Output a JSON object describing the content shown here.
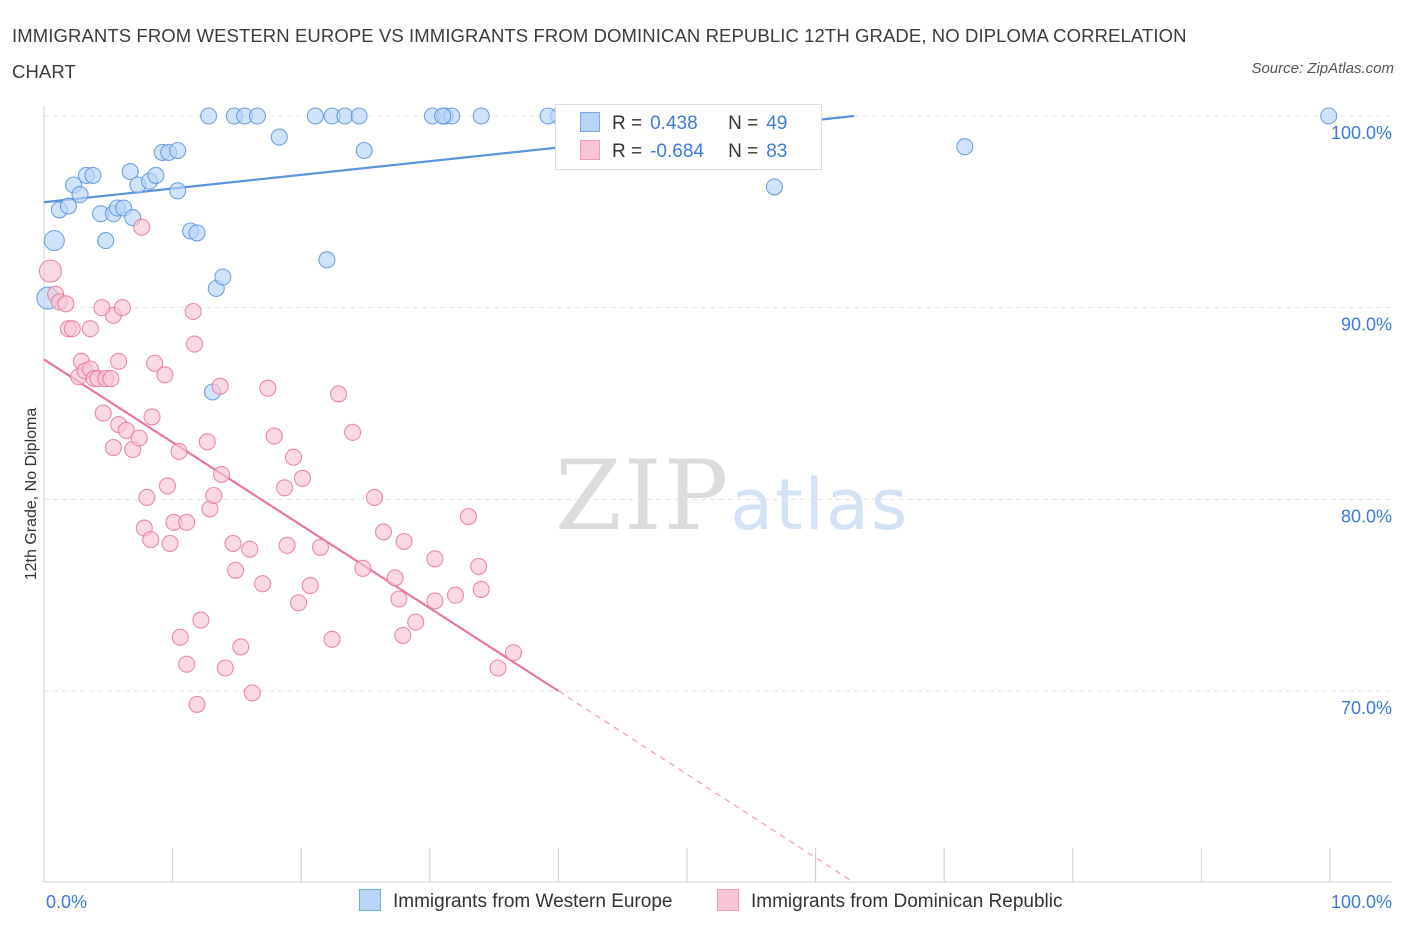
{
  "title": "IMMIGRANTS FROM WESTERN EUROPE VS IMMIGRANTS FROM DOMINICAN REPUBLIC 12TH GRADE, NO DIPLOMA CORRELATION CHART",
  "source": "Source: ZipAtlas.com",
  "watermark": {
    "zip": "ZIP",
    "atlas": "atlas"
  },
  "legend": {
    "r_label": "R =",
    "n_label": "N =",
    "rows": [
      {
        "r": "0.438",
        "n": "49",
        "fill": "#b8d4f7",
        "stroke": "#7aa9e8"
      },
      {
        "r": "-0.684",
        "n": "83",
        "fill": "#f9c5d6",
        "stroke": "#ee9ab6"
      }
    ]
  },
  "bottom_legend": [
    {
      "label": "Immigrants from Western Europe"
    },
    {
      "label": "Immigrants from Dominican Republic"
    }
  ],
  "chart_data": {
    "type": "scatter",
    "title": "IMMIGRANTS FROM WESTERN EUROPE VS IMMIGRANTS FROM DOMINICAN REPUBLIC 12TH GRADE, NO DIPLOMA CORRELATION CHART",
    "xlabel": "",
    "ylabel": "12th Grade, No Diploma",
    "xlim": [
      0,
      100
    ],
    "ylim": [
      60,
      100
    ],
    "x_tick_labels": [
      "0.0%",
      "100.0%"
    ],
    "y_ticks": [
      70,
      80,
      90,
      100
    ],
    "y_tick_labels": [
      "70.0%",
      "80.0%",
      "90.0%",
      "100.0%"
    ],
    "grid": true,
    "legend_placement": "top-center",
    "series": [
      {
        "name": "Immigrants from Western Europe",
        "color": "#5b93dd",
        "fill": "#b8d4f7",
        "r": 0.438,
        "n": 49,
        "trend": {
          "x": [
            0,
            63
          ],
          "y": [
            95.5,
            100
          ]
        },
        "points": [
          [
            0.3,
            90.5
          ],
          [
            0.8,
            93.5
          ],
          [
            1.2,
            95.1
          ],
          [
            1.9,
            95.3
          ],
          [
            2.3,
            96.4
          ],
          [
            2.8,
            95.9
          ],
          [
            3.3,
            96.9
          ],
          [
            3.8,
            96.9
          ],
          [
            4.4,
            94.9
          ],
          [
            5.4,
            94.9
          ],
          [
            5.7,
            95.2
          ],
          [
            6.2,
            95.2
          ],
          [
            4.8,
            93.5
          ],
          [
            6.9,
            94.7
          ],
          [
            6.7,
            97.1
          ],
          [
            7.3,
            96.4
          ],
          [
            8.2,
            96.6
          ],
          [
            8.7,
            96.9
          ],
          [
            9.2,
            98.1
          ],
          [
            9.7,
            98.1
          ],
          [
            10.4,
            98.2
          ],
          [
            10.4,
            96.1
          ],
          [
            11.4,
            94.0
          ],
          [
            11.9,
            93.9
          ],
          [
            13.4,
            91.0
          ],
          [
            13.9,
            91.6
          ],
          [
            13.1,
            85.6
          ],
          [
            12.8,
            100
          ],
          [
            14.8,
            100
          ],
          [
            15.6,
            100
          ],
          [
            16.6,
            100
          ],
          [
            18.3,
            98.9
          ],
          [
            21.1,
            100
          ],
          [
            22.4,
            100
          ],
          [
            23.4,
            100
          ],
          [
            24.5,
            100
          ],
          [
            24.9,
            98.2
          ],
          [
            22.0,
            92.5
          ],
          [
            30.2,
            100
          ],
          [
            31.2,
            100
          ],
          [
            31.7,
            100
          ],
          [
            34.0,
            100
          ],
          [
            40.0,
            100
          ],
          [
            47.3,
            100
          ],
          [
            56.8,
            96.3
          ],
          [
            71.6,
            98.4
          ],
          [
            99.9,
            100
          ],
          [
            31.0,
            100
          ],
          [
            39.2,
            100
          ]
        ]
      },
      {
        "name": "Immigrants from Dominican Republic",
        "color": "#e8779c",
        "fill": "#f9c5d6",
        "r": -0.684,
        "n": 83,
        "trend": {
          "x": [
            0,
            40
          ],
          "y": [
            87.3,
            70
          ]
        },
        "trend_dashed": {
          "x": [
            40,
            63
          ],
          "y": [
            70,
            60
          ]
        },
        "points": [
          [
            0.5,
            91.9
          ],
          [
            0.9,
            90.7
          ],
          [
            1.2,
            90.3
          ],
          [
            1.7,
            90.2
          ],
          [
            1.9,
            88.9
          ],
          [
            2.2,
            88.9
          ],
          [
            2.7,
            86.4
          ],
          [
            2.9,
            87.2
          ],
          [
            3.2,
            86.7
          ],
          [
            3.6,
            86.8
          ],
          [
            3.9,
            86.3
          ],
          [
            4.2,
            86.3
          ],
          [
            4.8,
            86.3
          ],
          [
            5.2,
            86.3
          ],
          [
            3.6,
            88.9
          ],
          [
            4.6,
            84.5
          ],
          [
            5.4,
            89.6
          ],
          [
            5.8,
            87.2
          ],
          [
            4.5,
            90.0
          ],
          [
            6.1,
            90.0
          ],
          [
            5.8,
            83.9
          ],
          [
            5.4,
            82.7
          ],
          [
            6.4,
            83.6
          ],
          [
            6.9,
            82.6
          ],
          [
            7.4,
            83.2
          ],
          [
            8.4,
            84.3
          ],
          [
            8.6,
            87.1
          ],
          [
            7.6,
            94.2
          ],
          [
            9.4,
            86.5
          ],
          [
            11.6,
            89.8
          ],
          [
            11.7,
            88.1
          ],
          [
            10.5,
            82.5
          ],
          [
            8.0,
            80.1
          ],
          [
            7.8,
            78.5
          ],
          [
            8.3,
            77.9
          ],
          [
            9.6,
            80.7
          ],
          [
            9.8,
            77.7
          ],
          [
            10.1,
            78.8
          ],
          [
            11.1,
            78.8
          ],
          [
            12.7,
            83.0
          ],
          [
            12.9,
            79.5
          ],
          [
            13.2,
            80.2
          ],
          [
            13.8,
            81.3
          ],
          [
            13.7,
            85.9
          ],
          [
            14.7,
            77.7
          ],
          [
            14.9,
            76.3
          ],
          [
            17.4,
            85.8
          ],
          [
            17.9,
            83.3
          ],
          [
            18.7,
            80.6
          ],
          [
            19.4,
            82.2
          ],
          [
            20.1,
            81.1
          ],
          [
            18.9,
            77.6
          ],
          [
            19.8,
            74.6
          ],
          [
            20.7,
            75.5
          ],
          [
            21.5,
            77.5
          ],
          [
            22.9,
            85.5
          ],
          [
            24.0,
            83.5
          ],
          [
            24.8,
            76.4
          ],
          [
            26.4,
            78.3
          ],
          [
            27.3,
            75.9
          ],
          [
            28.0,
            77.8
          ],
          [
            25.7,
            80.1
          ],
          [
            27.9,
            72.9
          ],
          [
            28.9,
            73.6
          ],
          [
            27.6,
            74.8
          ],
          [
            22.4,
            72.7
          ],
          [
            10.6,
            72.8
          ],
          [
            11.1,
            71.4
          ],
          [
            12.2,
            73.7
          ],
          [
            11.9,
            69.3
          ],
          [
            14.1,
            71.2
          ],
          [
            15.3,
            72.3
          ],
          [
            16.2,
            69.9
          ],
          [
            30.4,
            74.7
          ],
          [
            30.4,
            76.9
          ],
          [
            32.0,
            75.0
          ],
          [
            33.0,
            79.1
          ],
          [
            33.8,
            76.5
          ],
          [
            34.0,
            75.3
          ],
          [
            35.3,
            71.2
          ],
          [
            36.5,
            72.0
          ],
          [
            16.0,
            77.4
          ],
          [
            17.0,
            75.6
          ]
        ]
      }
    ]
  }
}
